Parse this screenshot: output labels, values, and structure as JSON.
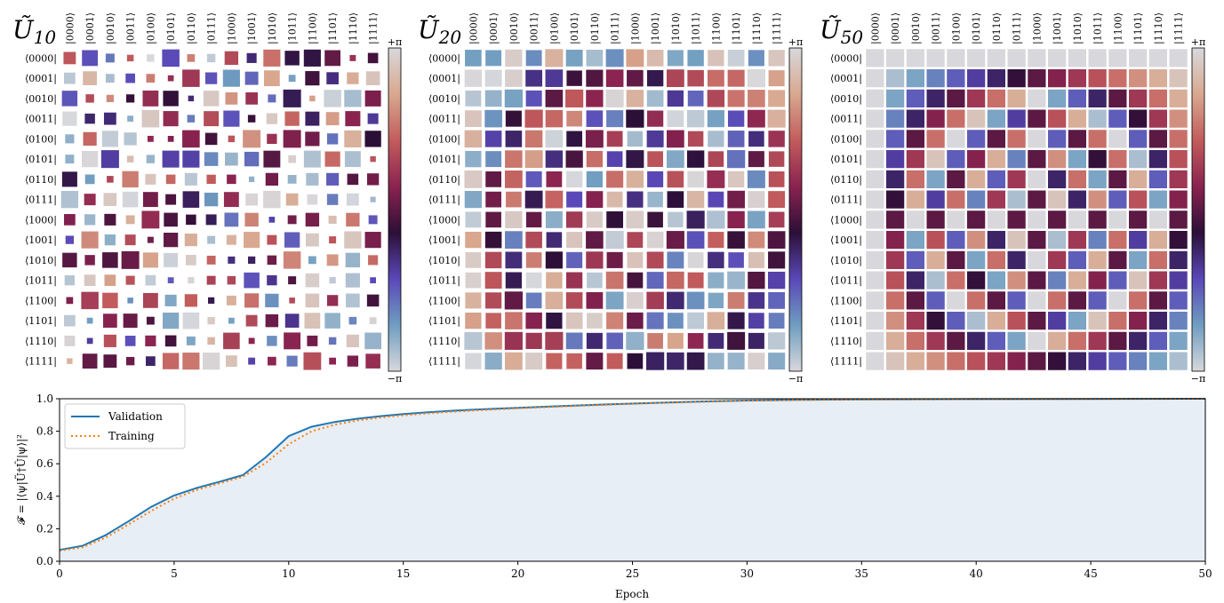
{
  "basis_labels": [
    "0000",
    "0001",
    "0010",
    "0011",
    "0100",
    "0101",
    "0110",
    "0111",
    "1000",
    "1001",
    "1010",
    "1011",
    "1100",
    "1101",
    "1110",
    "1111"
  ],
  "colorbar": {
    "top_label": "+π",
    "bottom_label": "−π",
    "stops": [
      "#d8d8dc",
      "#6f9dc0",
      "#5a48b8",
      "#2c0f37",
      "#8a2350",
      "#c25c5c",
      "#d8a88f",
      "#d8d8dc"
    ]
  },
  "chart_data": [
    {
      "type": "heatmap",
      "title": "Ũ",
      "title_sub": "10",
      "description": "Hinton-style phase matrix; cell color = phase in [-π, π], cell size = magnitude",
      "pattern": "random",
      "seed": 10,
      "size_min": 0.3,
      "size_max": 1.0
    },
    {
      "type": "heatmap",
      "title": "Ũ",
      "title_sub": "20",
      "description": "Hinton-style phase matrix; magnitudes nearly uniform",
      "pattern": "partial-dft",
      "seed": 20,
      "size_min": 0.86,
      "size_max": 1.0
    },
    {
      "type": "heatmap",
      "title": "Ũ",
      "title_sub": "50",
      "description": "Hinton-style phase matrix converged to QFT phases (uniform magnitude)",
      "pattern": "dft",
      "seed": 50,
      "size_min": 1.0,
      "size_max": 1.0
    },
    {
      "type": "line",
      "xlabel": "Epoch",
      "ylabel": "𝓕 = |⟨ψ|Ũ†Û|ψ⟩|²",
      "xlim": [
        0,
        50
      ],
      "ylim": [
        0,
        1.0
      ],
      "xticks": [
        0,
        5,
        10,
        15,
        20,
        25,
        30,
        35,
        40,
        45,
        50
      ],
      "yticks": [
        0.0,
        0.2,
        0.4,
        0.6,
        0.8,
        1.0
      ],
      "legend": "top-left",
      "fill_color": "#e8eef6",
      "series": [
        {
          "name": "Validation",
          "color": "#1f77b4",
          "style": "solid",
          "x": [
            0,
            1,
            2,
            3,
            4,
            5,
            6,
            7,
            8,
            9,
            10,
            11,
            12,
            13,
            14,
            15,
            16,
            17,
            18,
            19,
            20,
            22,
            24,
            26,
            28,
            30,
            32,
            35,
            40,
            45,
            50
          ],
          "y": [
            0.07,
            0.095,
            0.16,
            0.245,
            0.335,
            0.405,
            0.452,
            0.49,
            0.53,
            0.64,
            0.77,
            0.828,
            0.857,
            0.877,
            0.893,
            0.906,
            0.916,
            0.925,
            0.932,
            0.938,
            0.944,
            0.956,
            0.966,
            0.975,
            0.983,
            0.989,
            0.993,
            0.996,
            0.998,
            0.999,
            1.0
          ]
        },
        {
          "name": "Training",
          "color": "#ff7f0e",
          "style": "dotted",
          "x": [
            0,
            1,
            2,
            3,
            4,
            5,
            6,
            7,
            8,
            9,
            10,
            11,
            12,
            13,
            14,
            15,
            16,
            17,
            18,
            19,
            20,
            22,
            24,
            26,
            28,
            30,
            32,
            35,
            40,
            45,
            50
          ],
          "y": [
            0.065,
            0.085,
            0.145,
            0.225,
            0.31,
            0.385,
            0.44,
            0.48,
            0.52,
            0.605,
            0.72,
            0.8,
            0.84,
            0.866,
            0.884,
            0.898,
            0.909,
            0.919,
            0.927,
            0.934,
            0.941,
            0.953,
            0.964,
            0.973,
            0.981,
            0.988,
            0.992,
            0.995,
            0.998,
            0.999,
            1.0
          ]
        }
      ]
    }
  ]
}
